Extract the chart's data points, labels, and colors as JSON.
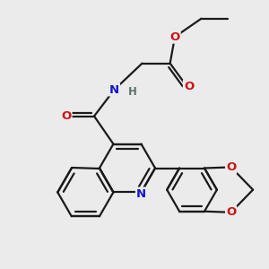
{
  "bg_color": "#ebebeb",
  "bond_color": "#1a1a1a",
  "bond_width": 1.6,
  "atom_colors": {
    "N": "#1414cc",
    "O": "#cc1414",
    "H": "#607070",
    "C": "#1a1a1a"
  },
  "figsize": [
    3.0,
    3.0
  ],
  "dpi": 100
}
